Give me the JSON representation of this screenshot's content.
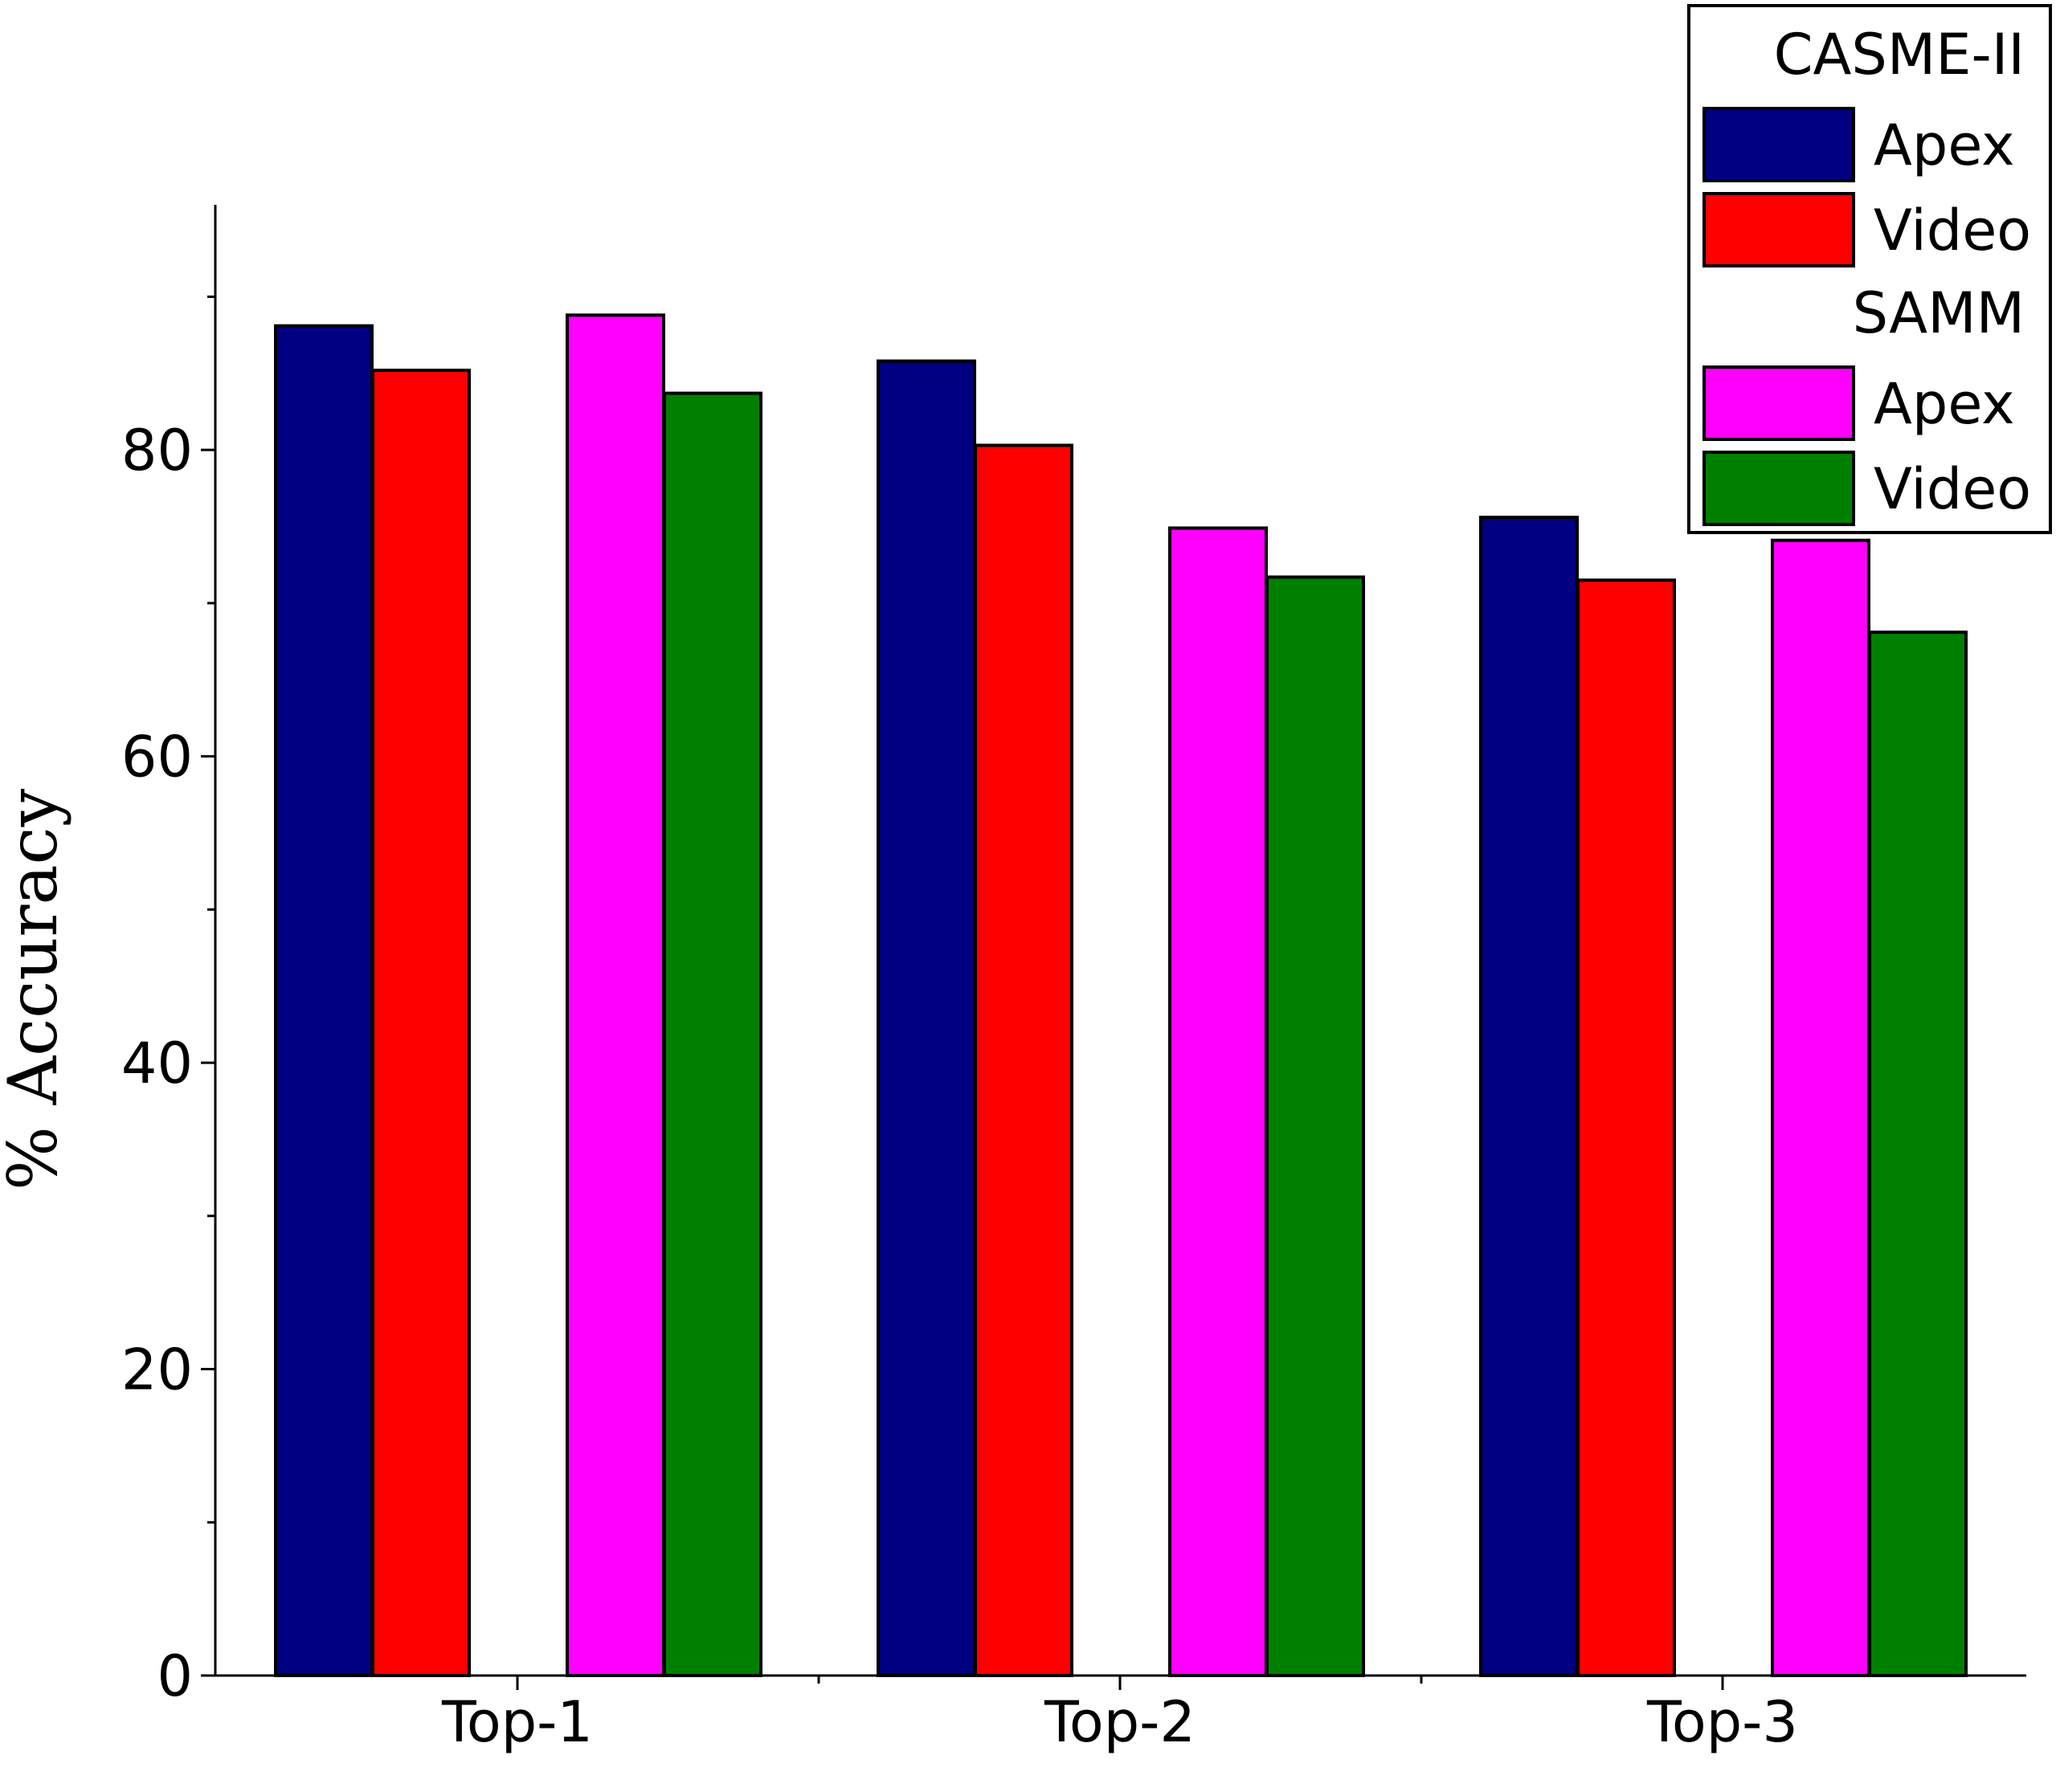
{
  "chart_data": {
    "type": "bar",
    "categories": [
      "Top-1",
      "Top-2",
      "Top-3"
    ],
    "ylabel": "% Accuracy",
    "xlabel": "",
    "ylim": [
      0,
      96
    ],
    "yticks": [
      0,
      20,
      40,
      60,
      80
    ],
    "y_minor_step": 10,
    "series": [
      {
        "name": "Apex",
        "group": "CASME-II",
        "color": "#000080",
        "values": [
          88.1,
          85.8,
          75.6
        ]
      },
      {
        "name": "Video",
        "group": "CASME-II",
        "color": "#ff0000",
        "values": [
          85.2,
          80.3,
          71.5
        ]
      },
      {
        "name": "Apex",
        "group": "SAMM",
        "color": "#ff00ff",
        "values": [
          88.8,
          74.9,
          74.1
        ]
      },
      {
        "name": "Video",
        "group": "SAMM",
        "color": "#008000",
        "values": [
          83.7,
          71.7,
          68.1
        ]
      }
    ],
    "legend": {
      "placement": "top-right",
      "groups": [
        {
          "title": "CASME-II",
          "series_index": [
            0,
            1
          ]
        },
        {
          "title": "SAMM",
          "series_index": [
            2,
            3
          ]
        }
      ]
    }
  }
}
